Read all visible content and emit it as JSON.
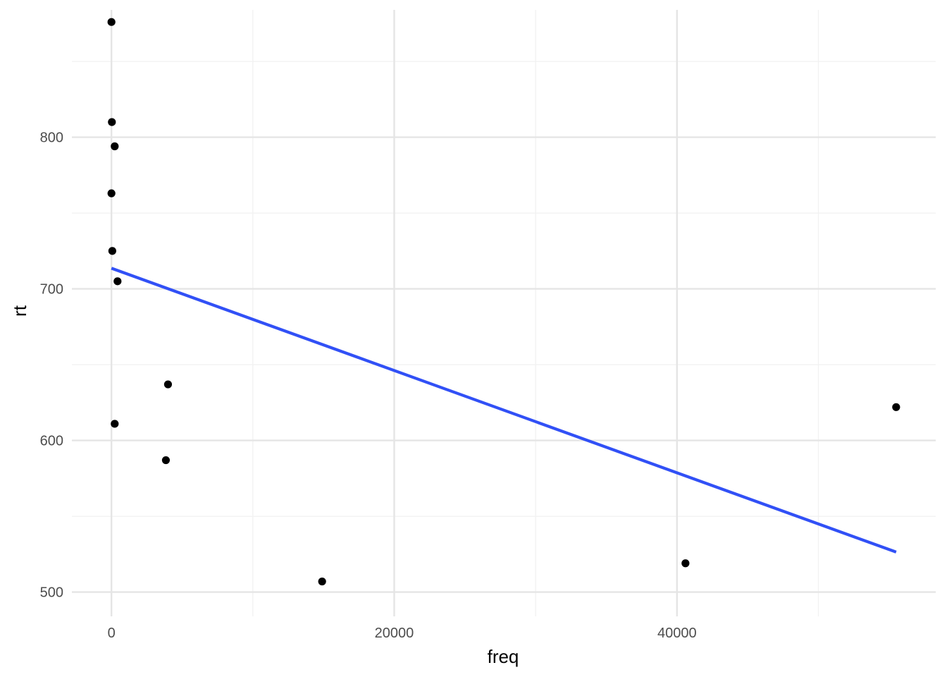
{
  "chart_data": {
    "type": "scatter",
    "title": "",
    "xlabel": "freq",
    "ylabel": "rt",
    "xlim": [
      -2800,
      58300
    ],
    "ylim": [
      484,
      884
    ],
    "x_ticks": [
      0,
      20000,
      40000
    ],
    "x_tick_labels": [
      "0",
      "20000",
      "40000"
    ],
    "x_minor_ticks": [
      10000,
      30000,
      50000
    ],
    "y_ticks": [
      500,
      600,
      700,
      800
    ],
    "y_tick_labels": [
      "500",
      "600",
      "700",
      "800"
    ],
    "y_minor_ticks": [
      550,
      650,
      750,
      850
    ],
    "grid": true,
    "legend": "none",
    "points": [
      {
        "x": 0,
        "y": 876
      },
      {
        "x": 30,
        "y": 810
      },
      {
        "x": 230,
        "y": 794
      },
      {
        "x": 0,
        "y": 763
      },
      {
        "x": 60,
        "y": 725
      },
      {
        "x": 430,
        "y": 705
      },
      {
        "x": 4000,
        "y": 637
      },
      {
        "x": 230,
        "y": 611
      },
      {
        "x": 3850,
        "y": 587
      },
      {
        "x": 14900,
        "y": 507
      },
      {
        "x": 40600,
        "y": 519
      },
      {
        "x": 55500,
        "y": 622
      }
    ],
    "trend_line": {
      "x": [
        0,
        55500
      ],
      "y": [
        713.6,
        526.4
      ]
    },
    "colors": {
      "points": "#000000",
      "trend_line": "#3150f6",
      "grid_major": "#e5e5e5",
      "grid_minor": "#f1f1f1",
      "tick_text": "#4d4d4d",
      "axis_title": "#000000"
    }
  }
}
